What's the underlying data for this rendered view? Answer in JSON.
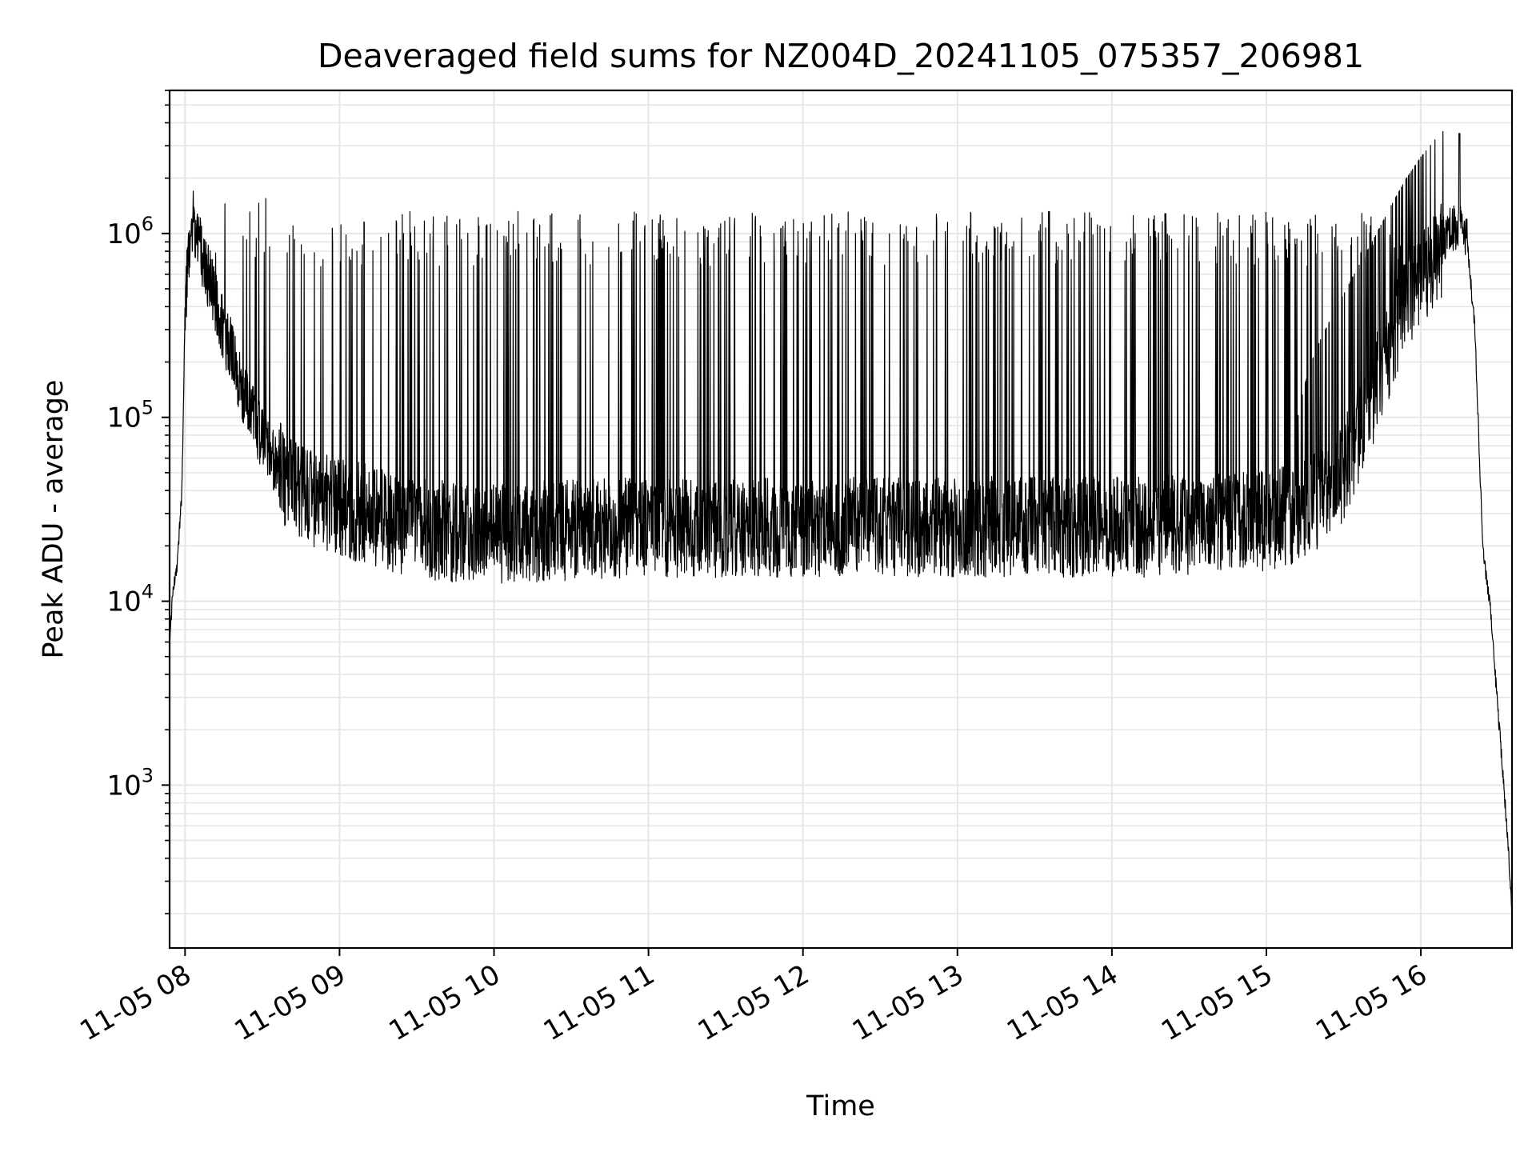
{
  "chart_data": {
    "type": "line",
    "title": "Deaveraged field sums for NZ004D_20241105_075357_206981",
    "xlabel": "Time",
    "ylabel": "Peak ADU - average",
    "yscale": "log",
    "grid": true,
    "legend": "none",
    "x_tick_labels": [
      "11-05 08",
      "11-05 09",
      "11-05 10",
      "11-05 11",
      "11-05 12",
      "11-05 13",
      "11-05 14",
      "11-05 15",
      "11-05 16"
    ],
    "x_tick_hours": [
      8,
      9,
      10,
      11,
      12,
      13,
      14,
      15,
      16
    ],
    "xlim_hours": [
      7.9,
      16.59
    ],
    "y_ticks": [
      {
        "base": "10",
        "exp": "3",
        "value": 1000
      },
      {
        "base": "10",
        "exp": "4",
        "value": 10000
      },
      {
        "base": "10",
        "exp": "5",
        "value": 100000
      },
      {
        "base": "10",
        "exp": "6",
        "value": 1000000
      }
    ],
    "ylim": [
      130,
      6000000
    ],
    "line_color": "#000000",
    "grid_color": "#e6e6e6",
    "series": [
      {
        "x_hours": [
          7.9,
          7.92,
          7.95,
          7.98,
          8.0,
          8.03,
          8.05,
          8.08,
          8.12,
          8.16,
          8.2,
          8.25,
          8.3,
          8.35,
          8.4,
          8.45,
          8.5,
          8.55,
          8.6,
          8.65,
          8.7,
          8.75,
          8.8,
          8.85,
          8.9,
          8.95,
          9.0,
          9.1,
          9.2,
          9.3,
          9.4,
          9.5,
          9.6,
          9.7,
          9.8,
          9.9,
          10.0,
          10.25,
          10.5,
          10.75,
          11.0,
          11.25,
          11.5,
          11.75,
          12.0,
          12.25,
          12.5,
          12.75,
          13.0,
          13.25,
          13.5,
          13.75,
          14.0,
          14.25,
          14.5,
          14.75,
          15.0,
          15.2,
          15.4,
          15.5,
          15.6,
          15.7,
          15.8,
          15.9,
          16.0,
          16.1,
          16.2,
          16.25,
          16.3,
          16.35,
          16.4,
          16.45,
          16.5,
          16.55,
          16.59
        ],
        "baseline": [
          5500,
          11000,
          16000,
          40000,
          400000,
          900000,
          1150000,
          1050000,
          700000,
          550000,
          420000,
          290000,
          230000,
          160000,
          120000,
          95000,
          78000,
          62000,
          55000,
          50000,
          46000,
          43000,
          40000,
          38000,
          37000,
          36000,
          35000,
          33000,
          31000,
          29000,
          28000,
          27000,
          26000,
          25500,
          25000,
          25000,
          25000,
          25500,
          26000,
          26500,
          27000,
          27000,
          27000,
          27000,
          27000,
          27000,
          27000,
          27000,
          27000,
          27000,
          27000,
          27000,
          27000,
          27000,
          27500,
          28000,
          29000,
          32000,
          40000,
          55000,
          90000,
          150000,
          260000,
          420000,
          600000,
          800000,
          1000000,
          1050000,
          900000,
          300000,
          20000,
          9000,
          2500,
          700,
          220
        ],
        "spike_peak": 1000000,
        "max_spike": 3500000,
        "min_value": 8700
      }
    ]
  }
}
